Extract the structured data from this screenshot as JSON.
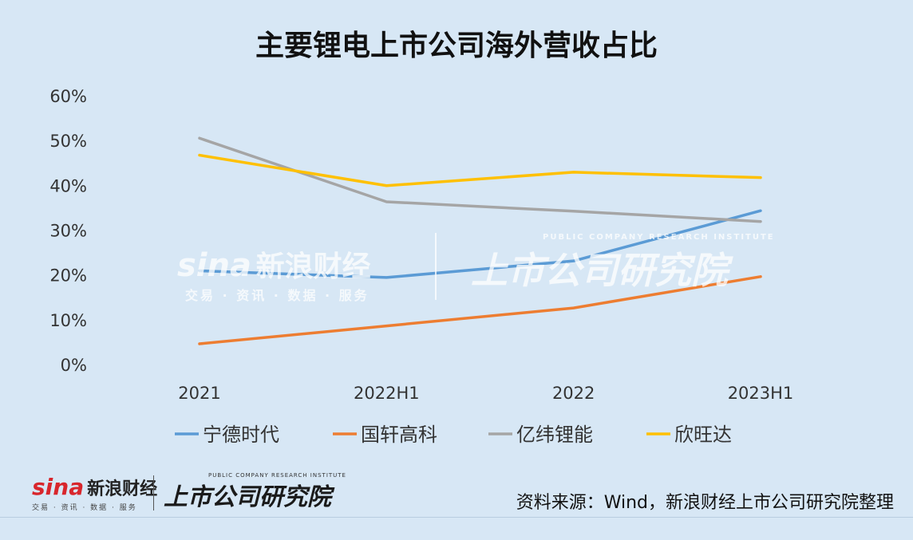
{
  "chart_data": {
    "type": "line",
    "title": "主要锂电上市公司海外营收占比",
    "categories": [
      "2021",
      "2022H1",
      "2022",
      "2023H1"
    ],
    "y_ticks": [
      "0%",
      "10%",
      "20%",
      "30%",
      "40%",
      "50%",
      "60%"
    ],
    "ylim": [
      0,
      60
    ],
    "grid": false,
    "legend_position": "bottom",
    "series": [
      {
        "name": "宁德时代",
        "color": "#5b9bd5",
        "values": [
          21.1,
          19.6,
          23.3,
          34.5
        ]
      },
      {
        "name": "国轩高科",
        "color": "#ed7d31",
        "values": [
          4.8,
          8.8,
          12.8,
          19.8
        ]
      },
      {
        "name": "亿纬锂能",
        "color": "#a5a5a5",
        "values": [
          50.7,
          36.5,
          34.4,
          32.1
        ]
      },
      {
        "name": "欣旺达",
        "color": "#ffc000",
        "values": [
          46.9,
          40.1,
          43.1,
          41.9
        ]
      }
    ]
  },
  "watermark": {
    "brand": "sina",
    "brand_cn": "新浪财经",
    "brand_sub": "交易 · 资讯 · 数据 · 服务",
    "institute_en": "PUBLIC COMPANY RESEARCH INSTITUTE",
    "institute_cn": "上市公司研究院"
  },
  "source_note": "资料来源：Wind，新浪财经上市公司研究院整理"
}
